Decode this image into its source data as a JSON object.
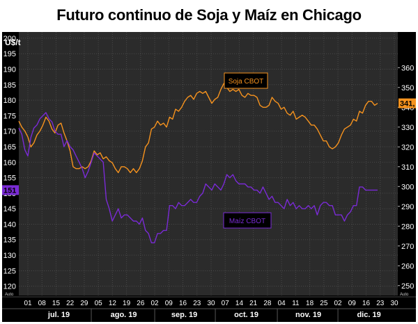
{
  "chart_data": {
    "type": "line",
    "title": "Futuro continuo de Soja y Maíz en Chicago",
    "ylabel": "U$/t",
    "left_axis": {
      "ticks": [
        120,
        125,
        130,
        135,
        140,
        145,
        150,
        155,
        160,
        165,
        170,
        175,
        180,
        185,
        190,
        195,
        200
      ],
      "range": [
        117,
        202
      ]
    },
    "right_axis": {
      "ticks": [
        250,
        260,
        270,
        280,
        290,
        300,
        310,
        320,
        330,
        340,
        350,
        360
      ],
      "range": [
        245,
        378
      ]
    },
    "x_day_ticks": [
      "01",
      "08",
      "15",
      "22",
      "29",
      "05",
      "12",
      "19",
      "26",
      "02",
      "09",
      "16",
      "23",
      "30",
      "07",
      "14",
      "21",
      "28",
      "04",
      "11",
      "18",
      "25",
      "02",
      "09",
      "16",
      "23",
      "30"
    ],
    "months": [
      "jul. 19",
      "ago. 19",
      "sep. 19",
      "oct. 19",
      "nov. 19",
      "dic. 19"
    ],
    "auto_label": "Auto",
    "series": [
      {
        "name": "Soja CBOT",
        "axis": "right",
        "color": "#f7931e",
        "last_label": "341,",
        "values": [
          333,
          330,
          328,
          325,
          320,
          322,
          326,
          328,
          331,
          335,
          333,
          329,
          327,
          331,
          332,
          327,
          323,
          318,
          310,
          309,
          309,
          310,
          309,
          310,
          313,
          318,
          316,
          317,
          314,
          315,
          313,
          312,
          309,
          307,
          310,
          310,
          309,
          307,
          309,
          307,
          309,
          313,
          320,
          322,
          329,
          330,
          333,
          331,
          332,
          330,
          335,
          334,
          339,
          338,
          340,
          343,
          345,
          346,
          344,
          347,
          348,
          347,
          348,
          345,
          342,
          344,
          345,
          349,
          352,
          350,
          348,
          349,
          348,
          349,
          346,
          345,
          347,
          346,
          346,
          345,
          341,
          340,
          340,
          341,
          345,
          343,
          342,
          339,
          340,
          337,
          336,
          338,
          334,
          335,
          336,
          335,
          333,
          331,
          331,
          329,
          326,
          323,
          323,
          320,
          319,
          320,
          322,
          326,
          329,
          330,
          331,
          334,
          333,
          338,
          337,
          341,
          343,
          343,
          341,
          342
        ]
      },
      {
        "name": "Maíz CBOT",
        "axis": "left",
        "color": "#7a2bd6",
        "last_label": "151",
        "values": [
          171,
          169,
          164,
          162,
          168,
          171,
          172,
          174,
          175,
          176,
          174,
          173,
          170,
          169,
          169,
          165,
          167,
          165,
          164,
          162,
          160,
          158,
          155,
          157,
          160,
          163,
          162,
          161,
          160,
          148,
          145,
          141,
          143,
          145,
          142,
          143,
          143,
          142,
          141,
          141,
          140,
          142,
          138,
          137,
          134,
          134,
          137,
          137,
          138,
          138,
          146,
          146,
          145,
          147,
          146,
          146,
          147,
          148,
          147,
          147,
          149,
          150,
          153,
          152,
          151,
          153,
          152,
          151,
          153,
          156,
          155,
          156,
          154,
          153,
          153,
          153,
          152,
          152,
          151,
          151,
          150,
          152,
          150,
          148,
          149,
          147,
          147,
          146,
          145,
          148,
          146,
          147,
          145,
          146,
          145,
          145,
          146,
          145,
          146,
          143,
          146,
          147,
          147,
          146,
          146,
          143,
          143,
          143,
          141,
          143,
          144,
          146,
          146,
          152,
          152,
          151,
          151,
          151,
          151,
          151
        ]
      }
    ]
  }
}
